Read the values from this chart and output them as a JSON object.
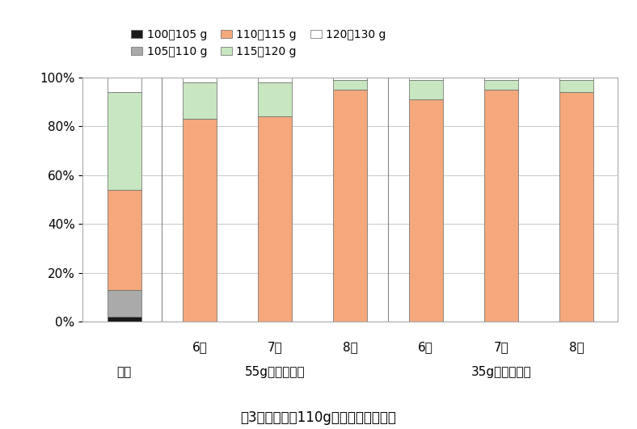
{
  "categories": [
    "慣行",
    "6束",
    "7束",
    "8束",
    "6束",
    "7束",
    "8束"
  ],
  "bund_labels": [
    null,
    "6束",
    "7束",
    "8束",
    "6束",
    "7束",
    "8束"
  ],
  "group_centers": [
    0,
    2,
    5
  ],
  "group_texts": [
    "慣行",
    "55g程度の小束",
    "35g程度の小束"
  ],
  "series": [
    {
      "label": "100～105 g",
      "color": "#1a1a1a",
      "values": [
        2,
        0,
        0,
        0,
        0,
        0,
        0
      ]
    },
    {
      "label": "105～110 g",
      "color": "#aaaaaa",
      "values": [
        11,
        0,
        0,
        0,
        0,
        0,
        0
      ]
    },
    {
      "label": "110～115 g",
      "color": "#f4a87c",
      "values": [
        41,
        83,
        84,
        95,
        91,
        95,
        94
      ]
    },
    {
      "label": "115～120 g",
      "color": "#c8e6c0",
      "values": [
        40,
        15,
        14,
        4,
        8,
        4,
        5
      ]
    },
    {
      "label": "120～130 g",
      "color": "#ffffff",
      "values": [
        6,
        2,
        2,
        1,
        1,
        1,
        1
      ]
    }
  ],
  "ylim": [
    0,
    100
  ],
  "yticks": [
    0,
    20,
    40,
    60,
    80,
    100
  ],
  "yticklabels": [
    "0%",
    "20%",
    "40%",
    "60%",
    "80%",
    "100%"
  ],
  "bar_width": 0.45,
  "group_boundaries": [
    0.5,
    3.5
  ],
  "fig_caption": "図3　目標質量110gにおける調量精度",
  "bar_edge_color": "#666666",
  "background_color": "#ffffff",
  "grid_color": "#cccccc",
  "legend_ncol_row1": 3,
  "fontsize_tick": 11,
  "fontsize_label": 11,
  "fontsize_caption": 12
}
